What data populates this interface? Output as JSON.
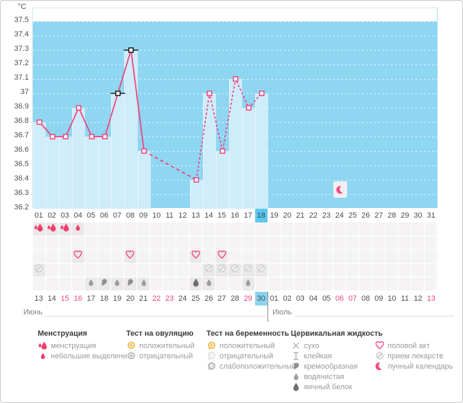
{
  "chart_data": {
    "type": "line",
    "title": "",
    "ylabel": "°C",
    "ylim": [
      36.2,
      37.6
    ],
    "yticks": [
      "37.5",
      "37.4",
      "37.3",
      "37.2",
      "37.1",
      "37",
      "36.9",
      "36.8",
      "36.7",
      "36.6",
      "36.5",
      "36.4",
      "36.3",
      "36.2"
    ],
    "x_days": [
      "01",
      "02",
      "03",
      "04",
      "05",
      "06",
      "07",
      "08",
      "09",
      "10",
      "11",
      "12",
      "13",
      "14",
      "15",
      "16",
      "17",
      "18",
      "19",
      "20",
      "21",
      "22",
      "23",
      "24",
      "25",
      "26",
      "27",
      "28",
      "29",
      "30",
      "31"
    ],
    "series": [
      {
        "name": "basal-temperature",
        "points": [
          {
            "day": 1,
            "temp": 36.8
          },
          {
            "day": 2,
            "temp": 36.7
          },
          {
            "day": 3,
            "temp": 36.7
          },
          {
            "day": 4,
            "temp": 36.9
          },
          {
            "day": 5,
            "temp": 36.7
          },
          {
            "day": 6,
            "temp": 36.7
          },
          {
            "day": 7,
            "temp": 37.0
          },
          {
            "day": 8,
            "temp": 37.3
          },
          {
            "day": 9,
            "temp": 36.6
          },
          {
            "day": 13,
            "temp": 36.4
          },
          {
            "day": 14,
            "temp": 37.0
          },
          {
            "day": 15,
            "temp": 36.6
          },
          {
            "day": 16,
            "temp": 37.1
          },
          {
            "day": 17,
            "temp": 36.9
          },
          {
            "day": 18,
            "temp": 37.0
          }
        ]
      }
    ],
    "segments": [
      {
        "from_day": 1,
        "to_day": 9,
        "style": "solid"
      },
      {
        "from_day": 9,
        "to_day": 13,
        "style": "dashed-gap"
      },
      {
        "from_day": 13,
        "to_day": 18,
        "style": "dashed"
      }
    ],
    "ovulation_marked_days": [
      7,
      8
    ],
    "current_cycle_day": 18,
    "moon_phase_day": 24,
    "grid": true
  },
  "events": {
    "menstruation": [
      {
        "col": 1,
        "kind": "heavy"
      },
      {
        "col": 2,
        "kind": "heavy"
      },
      {
        "col": 3,
        "kind": "heavy"
      },
      {
        "col": 4,
        "kind": "spotting"
      }
    ],
    "tests": [],
    "intercourse_cols": [
      4,
      8,
      13,
      15
    ],
    "medication_cols": [
      1,
      14,
      15,
      16,
      17,
      18
    ],
    "fluid": [
      {
        "col": 5,
        "kind": "watery"
      },
      {
        "col": 6,
        "kind": "creamy"
      },
      {
        "col": 7,
        "kind": "watery"
      },
      {
        "col": 8,
        "kind": "creamy"
      },
      {
        "col": 9,
        "kind": "watery"
      },
      {
        "col": 13,
        "kind": "eggwhite"
      },
      {
        "col": 14,
        "kind": "watery"
      },
      {
        "col": 17,
        "kind": "watery"
      }
    ]
  },
  "calendar": {
    "months": [
      {
        "name": "Июнь",
        "start_col": 1,
        "dates": [
          "13",
          "14",
          "15",
          "16",
          "17",
          "18",
          "19",
          "20",
          "21",
          "22",
          "23",
          "24",
          "25",
          "26",
          "27",
          "28",
          "29",
          "30"
        ],
        "weekend_dates": [
          "15",
          "16",
          "22",
          "23",
          "29"
        ],
        "current_date": "30"
      },
      {
        "name": "Июль",
        "start_col": 19,
        "dates": [
          "01",
          "02",
          "03",
          "04",
          "05",
          "06",
          "07",
          "08",
          "09",
          "10",
          "11",
          "12",
          "13"
        ],
        "weekend_dates": [
          "06",
          "07",
          "13"
        ],
        "current_date": ""
      }
    ]
  },
  "legend": {
    "groups": [
      {
        "title": "Менструация",
        "items": [
          {
            "icon": "drops-heavy-icon",
            "label": "менструация"
          },
          {
            "icon": "drop-spotting-icon",
            "label": "небольшие выделения"
          }
        ]
      },
      {
        "title": "Тест на овуляцию",
        "items": [
          {
            "icon": "ovulation-positive-icon",
            "label": "положительный"
          },
          {
            "icon": "ovulation-negative-icon",
            "label": "отрицательный"
          }
        ]
      },
      {
        "title": "Тест на беременность",
        "items": [
          {
            "icon": "pregnancy-positive-icon",
            "label": "положительный"
          },
          {
            "icon": "pregnancy-negative-icon",
            "label": "отрицательный"
          },
          {
            "icon": "pregnancy-weak-icon",
            "label": "слабоположительный"
          }
        ]
      },
      {
        "title": "Цервикальная жидкость",
        "items": [
          {
            "icon": "dry-icon",
            "label": "сухо"
          },
          {
            "icon": "sticky-icon",
            "label": "клейкая"
          },
          {
            "icon": "creamy-icon",
            "label": "кремообразная"
          },
          {
            "icon": "watery-icon",
            "label": "водянистая"
          },
          {
            "icon": "eggwhite-icon",
            "label": "яичный белок"
          }
        ]
      },
      {
        "title": "",
        "items": [
          {
            "icon": "intercourse-icon",
            "label": "половой акт"
          },
          {
            "icon": "medication-icon",
            "label": "прием лекарств"
          },
          {
            "icon": "moon-icon",
            "label": "лунный календарь"
          }
        ]
      }
    ]
  },
  "colors": {
    "accent_pink": "#f0437a",
    "drop_red": "#f43f6f",
    "plot_blue": "#8fd6f2",
    "bar_blue": "#cfecfb",
    "current_day_blue": "#5cc7ee",
    "current_date_blue": "#8bd3ef",
    "weekend_pink": "#f0437a",
    "coverline_black": "#1a1a1a"
  }
}
